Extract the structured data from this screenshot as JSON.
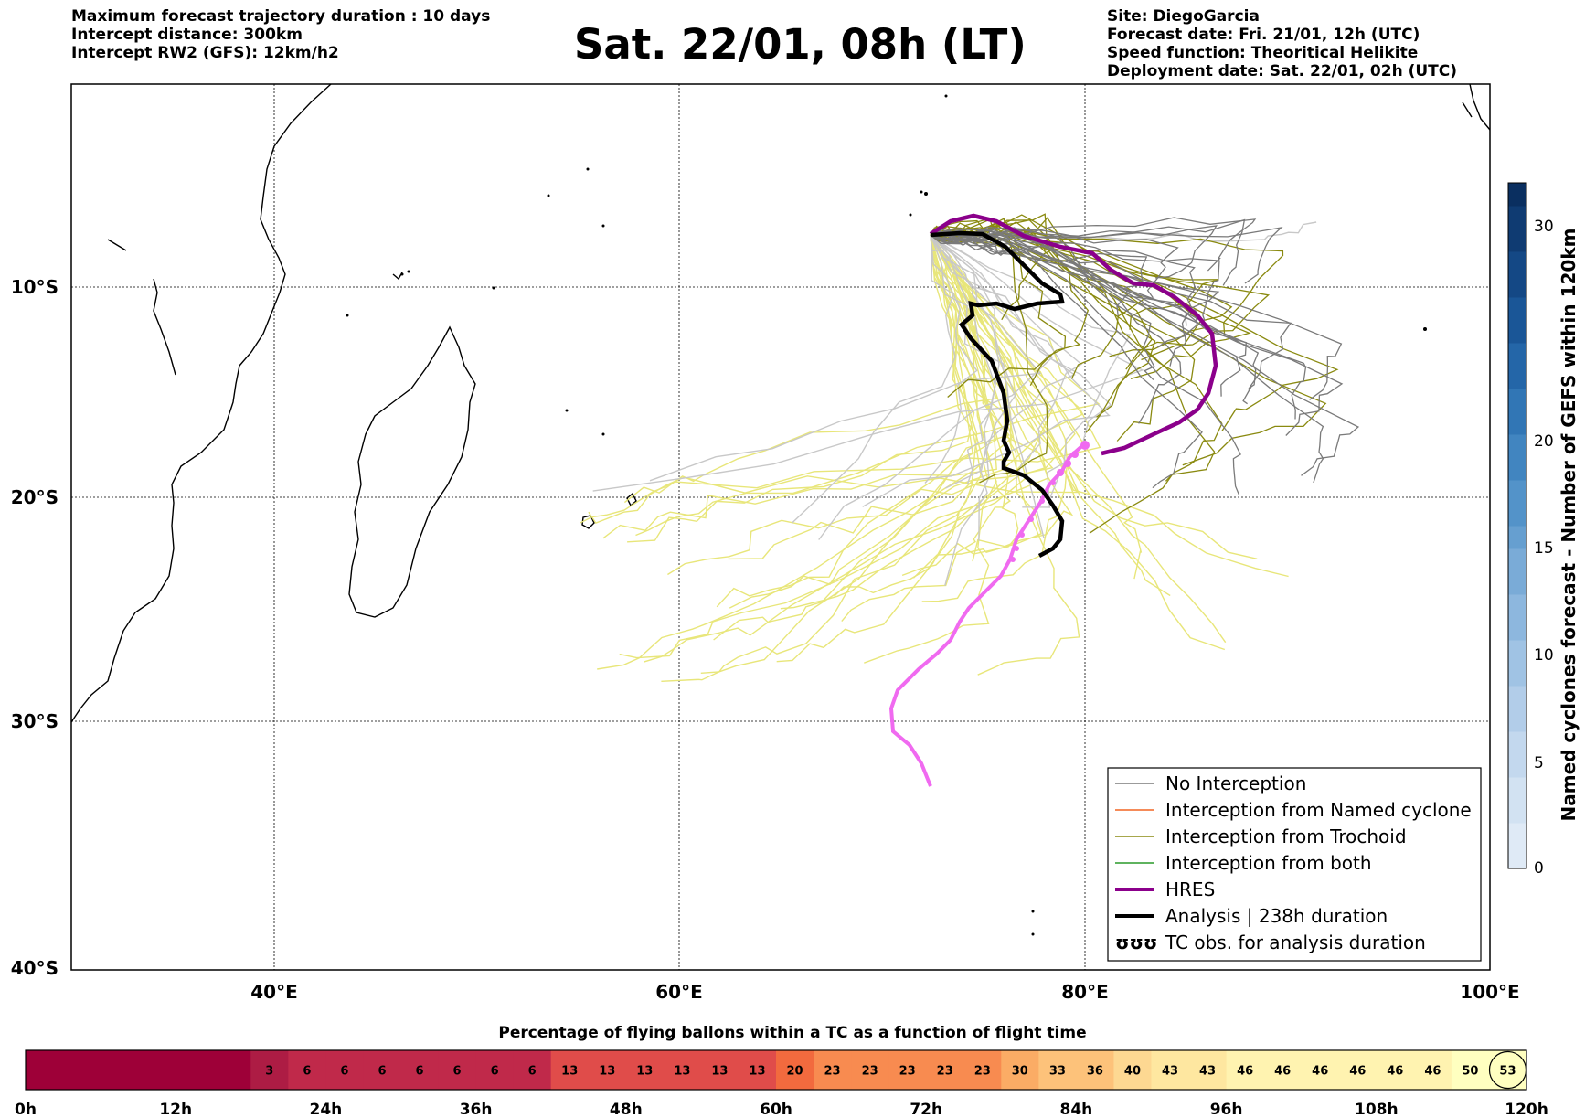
{
  "header": {
    "left": [
      "Maximum forecast trajectory duration : 10 days",
      "Intercept distance: 300km",
      "Intercept RW2 (GFS):  12km/h2"
    ],
    "title": "Sat. 22/01, 08h (LT)",
    "right": [
      "Site: DiegoGarcia",
      "Forecast date: Fri. 21/01, 12h (UTC)",
      "Speed function: Theoritical Helikite",
      "Deployment date: Sat. 22/01, 02h (UTC)"
    ]
  },
  "map": {
    "lon_labels": [
      "40°E",
      "60°E",
      "80°E",
      "100°E"
    ],
    "lat_labels": [
      "10°S",
      "20°S",
      "30°S",
      "40°S"
    ],
    "colors": {
      "no_interception": "#7a7a7a",
      "named_cyclone": "#f26522",
      "trochoid": "#8a8a10",
      "both": "#2a9a2a",
      "hres": "#8b008b",
      "analysis": "#000000",
      "tc_obs": "#f06af0",
      "light_grey": "#c8c8c8",
      "yellow": "#e8e67a"
    }
  },
  "legend": {
    "items": [
      "No Interception",
      "Interception from Named cyclone",
      "Interception from Trochoid",
      "Interception from both",
      "HRES",
      "Analysis | 238h duration",
      "TC obs. for analysis duration"
    ],
    "tc_symbol": "ʊʊʊ"
  },
  "colorbar": {
    "label": "Named cyclones forecast - Number of GEFS within 120km",
    "ticks": [
      "0",
      "5",
      "10",
      "15",
      "20",
      "30"
    ]
  },
  "strip": {
    "title": "Percentage of flying ballons within a TC as a function of flight time",
    "values": [
      "",
      "",
      "",
      "",
      "",
      "",
      "3",
      "6",
      "6",
      "6",
      "6",
      "6",
      "6",
      "6",
      "13",
      "13",
      "13",
      "13",
      "13",
      "13",
      "20",
      "23",
      "23",
      "23",
      "23",
      "23",
      "30",
      "33",
      "36",
      "40",
      "43",
      "43",
      "46",
      "46",
      "46",
      "46",
      "46",
      "46",
      "50",
      "53"
    ],
    "hours": [
      "0h",
      "12h",
      "24h",
      "36h",
      "48h",
      "60h",
      "72h",
      "84h",
      "96h",
      "108h",
      "120h"
    ]
  }
}
